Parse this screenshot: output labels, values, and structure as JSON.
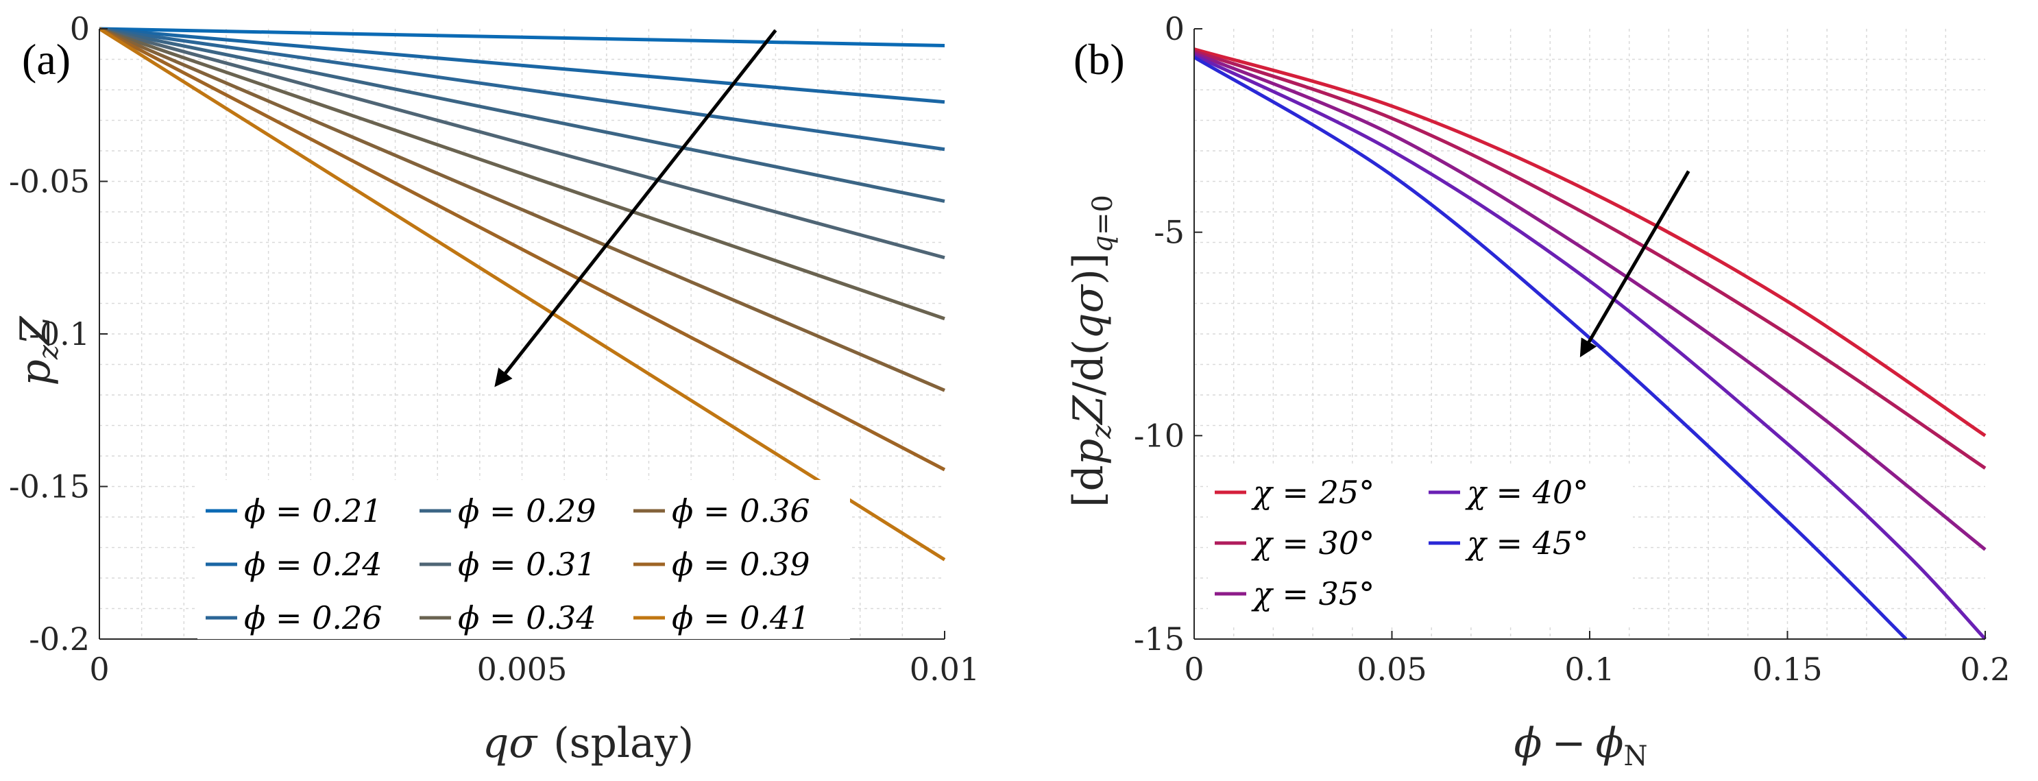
{
  "chart_data": [
    {
      "panel_label": "(a)",
      "type": "line",
      "xlabel": "qσ  (splay)",
      "ylabel": "p_zZ",
      "xlim": [
        0,
        0.01
      ],
      "ylim": [
        -0.2,
        0
      ],
      "xticks": [
        0,
        0.005,
        0.01
      ],
      "xtick_labels": [
        "0",
        "0.005",
        "0.01"
      ],
      "yticks": [
        0,
        -0.05,
        -0.1,
        -0.15,
        -0.2
      ],
      "ytick_labels": [
        "0",
        "-0.05",
        "-0.1",
        "-0.15",
        "-0.2"
      ],
      "grid": true,
      "legend_position": "bottom-left",
      "legend_columns": 3,
      "series": [
        {
          "name": "ϕ = 0.21",
          "color": "#0b6ab4",
          "x": [
            0,
            0.01
          ],
          "y": [
            0,
            -0.0055
          ]
        },
        {
          "name": "ϕ = 0.24",
          "color": "#1a66a4",
          "x": [
            0,
            0.01
          ],
          "y": [
            0,
            -0.024
          ]
        },
        {
          "name": "ϕ = 0.26",
          "color": "#2b6697",
          "x": [
            0,
            0.01
          ],
          "y": [
            0,
            -0.0395
          ]
        },
        {
          "name": "ϕ = 0.29",
          "color": "#3b6585",
          "x": [
            0,
            0.01
          ],
          "y": [
            0,
            -0.0565
          ]
        },
        {
          "name": "ϕ = 0.31",
          "color": "#4f6575",
          "x": [
            0,
            0.01
          ],
          "y": [
            0,
            -0.075
          ]
        },
        {
          "name": "ϕ = 0.34",
          "color": "#6a6350",
          "x": [
            0,
            0.01
          ],
          "y": [
            0,
            -0.095
          ]
        },
        {
          "name": "ϕ = 0.36",
          "color": "#83623a",
          "x": [
            0,
            0.01
          ],
          "y": [
            0,
            -0.1185
          ]
        },
        {
          "name": "ϕ = 0.39",
          "color": "#9e6425",
          "x": [
            0,
            0.01
          ],
          "y": [
            0,
            -0.1445
          ]
        },
        {
          "name": "ϕ = 0.41",
          "color": "#c07612",
          "x": [
            0,
            0.01
          ],
          "y": [
            0,
            -0.174
          ]
        }
      ],
      "arrow": {
        "from": [
          0.008,
          -0.0005
        ],
        "to": [
          0.0047,
          -0.1165
        ]
      }
    },
    {
      "panel_label": "(b)",
      "type": "line",
      "xlabel": "ϕ − ϕ_N",
      "ylabel": "[dp_zZ / d(qσ)]_q=0",
      "xlim": [
        0,
        0.2
      ],
      "ylim": [
        -15,
        0
      ],
      "xticks": [
        0,
        0.05,
        0.1,
        0.15,
        0.2
      ],
      "xtick_labels": [
        "0",
        "0.05",
        "0.1",
        "0.15",
        "0.2"
      ],
      "yticks": [
        0,
        -5,
        -10,
        -15
      ],
      "ytick_labels": [
        "0",
        "-5",
        "-10",
        "-15"
      ],
      "grid": true,
      "legend_position": "bottom-left",
      "legend_columns": 2,
      "series": [
        {
          "name": "χ = 25°",
          "color": "#d41f3b",
          "x": [
            0,
            0.05,
            0.1,
            0.15,
            0.2
          ],
          "y": [
            -0.5,
            -1.9,
            -4.0,
            -6.7,
            -10.0
          ]
        },
        {
          "name": "χ = 30°",
          "color": "#b01c5c",
          "x": [
            0,
            0.05,
            0.1,
            0.15,
            0.2
          ],
          "y": [
            -0.55,
            -2.2,
            -4.6,
            -7.5,
            -10.8
          ]
        },
        {
          "name": "χ = 35°",
          "color": "#8e1c8a",
          "x": [
            0,
            0.05,
            0.1,
            0.15,
            0.2
          ],
          "y": [
            -0.6,
            -2.6,
            -5.5,
            -8.9,
            -12.8
          ]
        },
        {
          "name": "χ = 40°",
          "color": "#6a20b4",
          "x": [
            0,
            0.05,
            0.1,
            0.15,
            0.18,
            0.2
          ],
          "y": [
            -0.65,
            -3.0,
            -6.2,
            -10.2,
            -12.9,
            -15.0
          ]
        },
        {
          "name": "χ = 45°",
          "color": "#2a28d6",
          "x": [
            0,
            0.05,
            0.1,
            0.15,
            0.18
          ],
          "y": [
            -0.7,
            -3.6,
            -7.6,
            -12.1,
            -15.0
          ]
        }
      ],
      "arrow": {
        "from": [
          0.125,
          -3.5
        ],
        "to": [
          0.098,
          -8.0
        ]
      }
    }
  ]
}
